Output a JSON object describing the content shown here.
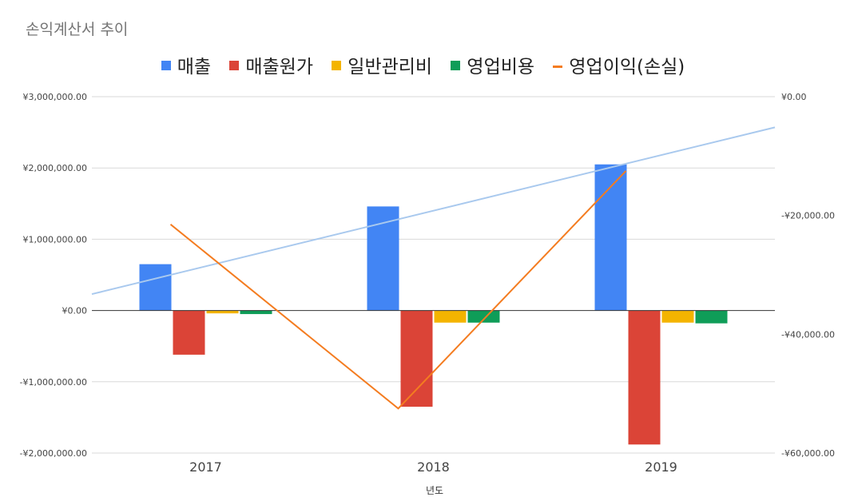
{
  "chart_data": {
    "type": "bar",
    "title": "손익계산서 추이",
    "xlabel": "년도",
    "categories": [
      "2017",
      "2018",
      "2019"
    ],
    "ylim": [
      -2000000,
      3000000
    ],
    "y2lim": [
      -60000,
      0
    ],
    "y_ticks": [
      3000000,
      2000000,
      1000000,
      0,
      -1000000,
      -2000000
    ],
    "y_tick_labels": [
      "¥3,000,000.00",
      "¥2,000,000.00",
      "¥1,000,000.00",
      "¥0.00",
      "-¥1,000,000.00",
      "-¥2,000,000.00"
    ],
    "y2_ticks": [
      0,
      -20000,
      -40000,
      -60000
    ],
    "y2_tick_labels": [
      "¥0.00",
      "-¥20,000.00",
      "-¥40,000.00",
      "-¥60,000.00"
    ],
    "legend_position": "top",
    "grid": true,
    "series": [
      {
        "name": "매출",
        "kind": "bar",
        "axis": "left",
        "color": "#4285F4",
        "values": [
          650000,
          1460000,
          2050000
        ]
      },
      {
        "name": "매출원가",
        "kind": "bar",
        "axis": "left",
        "color": "#DB4437",
        "values": [
          -620000,
          -1350000,
          -1880000
        ]
      },
      {
        "name": "일반관리비",
        "kind": "bar",
        "axis": "left",
        "color": "#F4B400",
        "values": [
          -40000,
          -170000,
          -170000
        ]
      },
      {
        "name": "영업비용",
        "kind": "bar",
        "axis": "left",
        "color": "#0F9D58",
        "values": [
          -50000,
          -170000,
          -180000
        ]
      },
      {
        "name": "영업이익(손실)",
        "kind": "line",
        "axis": "right",
        "color": "#F47C20",
        "values": [
          -21500,
          -52500,
          -12500
        ]
      }
    ],
    "trendline": {
      "color": "#A9C9EE",
      "start_value": 230000,
      "end_value": 2570000
    }
  }
}
